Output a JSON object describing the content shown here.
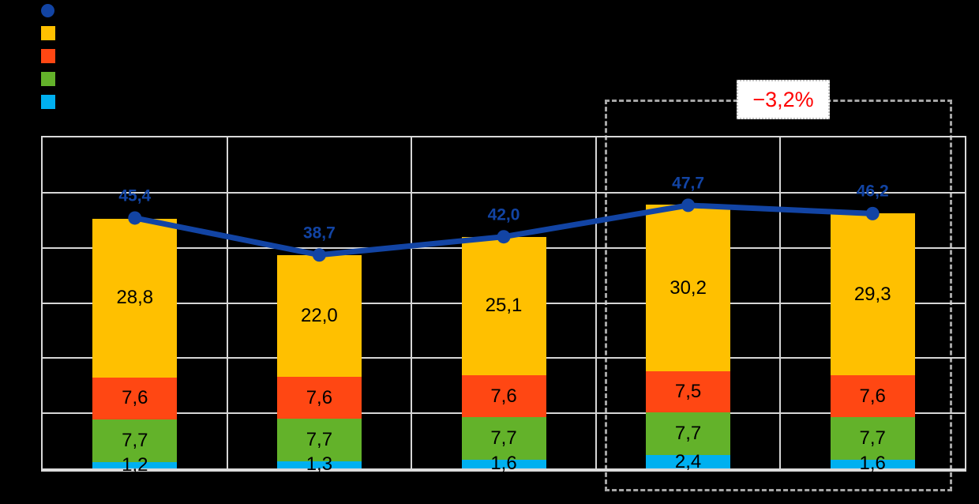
{
  "canvas": {
    "background": "#000000"
  },
  "legend": {
    "items": [
      {
        "name": "total-line",
        "marker": "circle",
        "color": "#1244A4"
      },
      {
        "name": "segment-amber",
        "marker": "square",
        "color": "#FFC000"
      },
      {
        "name": "segment-red",
        "marker": "square",
        "color": "#FF4713"
      },
      {
        "name": "segment-green",
        "marker": "square",
        "color": "#63B22A"
      },
      {
        "name": "segment-cyan",
        "marker": "square",
        "color": "#00B0F0"
      }
    ]
  },
  "annotation": {
    "label": "−3,2%",
    "text_color": "#FF0000"
  },
  "chart_data": {
    "type": "bar",
    "subtype": "stacked-bar-with-line",
    "categories": [
      "",
      "",
      "",
      "",
      ""
    ],
    "ylim": [
      0,
      60
    ],
    "ytick_step": 10,
    "grid": true,
    "legend_position": "top-left",
    "stack_series_bottom_to_top": [
      {
        "name": "cyan",
        "color": "#00B0F0",
        "values": [
          1.2,
          1.3,
          1.6,
          2.4,
          1.6
        ],
        "labels": [
          "1,2",
          "1,3",
          "1,6",
          "2,4",
          "1,6"
        ]
      },
      {
        "name": "green",
        "color": "#63B22A",
        "values": [
          7.7,
          7.7,
          7.7,
          7.7,
          7.7
        ],
        "labels": [
          "7,7",
          "7,7",
          "7,7",
          "7,7",
          "7,7"
        ]
      },
      {
        "name": "red",
        "color": "#FF4713",
        "values": [
          7.6,
          7.6,
          7.6,
          7.5,
          7.6
        ],
        "labels": [
          "7,6",
          "7,6",
          "7,6",
          "7,5",
          "7,6"
        ]
      },
      {
        "name": "amber",
        "color": "#FFC000",
        "values": [
          28.8,
          22.0,
          25.1,
          30.2,
          29.3
        ],
        "labels": [
          "28,8",
          "22,0",
          "25,1",
          "30,2",
          "29,3"
        ]
      }
    ],
    "line_series": {
      "name": "total",
      "color": "#1244A4",
      "values": [
        45.4,
        38.7,
        42.0,
        47.7,
        46.2
      ],
      "labels": [
        "45,4",
        "38,7",
        "42,0",
        "47,7",
        "46,2"
      ]
    },
    "highlight": {
      "label": "−3,2%",
      "covers_category_indices": [
        3,
        4
      ]
    }
  }
}
